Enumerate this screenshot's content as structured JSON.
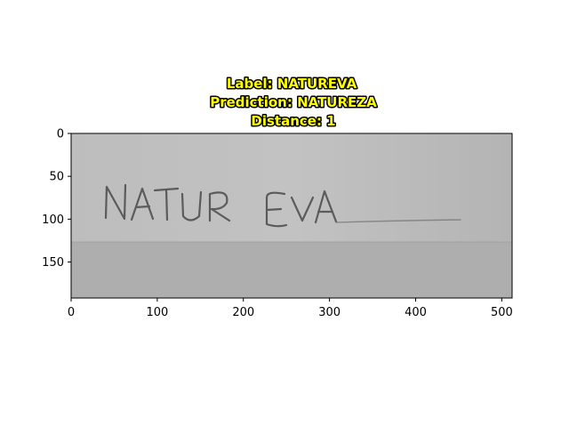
{
  "chart_data": {
    "type": "image",
    "title_lines": [
      "Label: NATUREVA",
      "Prediction: NATUREZA",
      "Distance: 1"
    ],
    "label": "NATUREVA",
    "prediction": "NATUREZA",
    "distance": 1,
    "image_extent": {
      "width": 512,
      "height": 192
    },
    "xlim": [
      0,
      512
    ],
    "ylim": [
      192,
      0
    ],
    "xticks": [
      0,
      100,
      200,
      300,
      400,
      500
    ],
    "yticks": [
      0,
      50,
      100,
      150
    ],
    "handwritten_text": "NATUREVA",
    "colors": {
      "title_fill": "#ffff00",
      "title_stroke": "#000000",
      "paper": "#b9b9b9",
      "paper_light": "#c4c4c4",
      "paper_dark": "#aaaaaa",
      "ink": "#4a4a4a"
    }
  }
}
